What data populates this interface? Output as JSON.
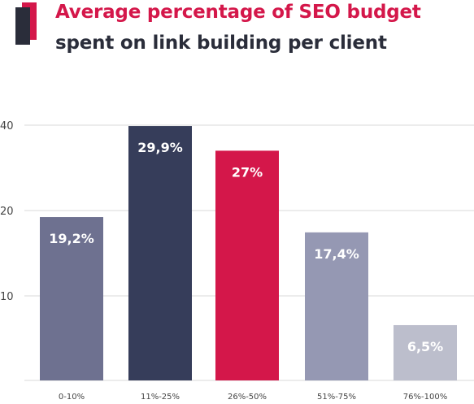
{
  "title_line1": "Average percentage of SEO budget",
  "title_line2": "spent on link building per client",
  "colors": {
    "title_accent": "#d4174a",
    "title_dark": "#2a2d3a",
    "grid": "#d9d9d9",
    "axis_text": "#444444"
  },
  "chart_data": {
    "type": "bar",
    "title": "Average percentage of SEO budget spent on link building per client",
    "categories": [
      "0-10%",
      "11%-25%",
      "26%-50%",
      "51%-75%",
      "76%-100%"
    ],
    "values": [
      19.2,
      29.9,
      27,
      17.4,
      6.5
    ],
    "data_labels": [
      "19,2%",
      "29,9%",
      "27%",
      "17,4%",
      "6,5%"
    ],
    "bar_colors": [
      "#6e7190",
      "#363d5a",
      "#d4174a",
      "#9598b3",
      "#bcbecc"
    ],
    "y_ticks": [
      10,
      20,
      40
    ],
    "ylim": [
      0,
      30
    ],
    "grid": true
  }
}
